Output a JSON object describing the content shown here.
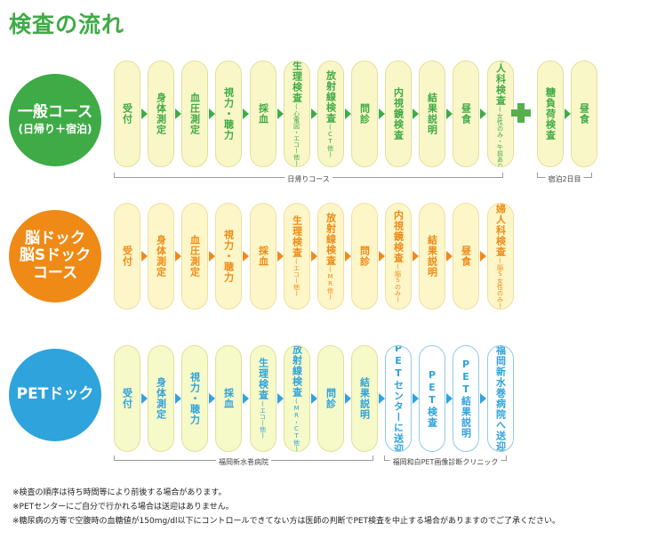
{
  "title": "検査の流れ",
  "colors": {
    "green": "#3fab46",
    "orange": "#ef8a16",
    "blue": "#2ea3dc",
    "green_fill": "#f9f7c7",
    "orange_fill": "#fdf6c8",
    "blue_fill": "#ffffff"
  },
  "courses": [
    {
      "name_main": "一般コース",
      "name_sub": "(日帰り＋宿泊)",
      "steps": [
        {
          "label": "受付",
          "note": ""
        },
        {
          "label": "身体測定",
          "note": ""
        },
        {
          "label": "血圧測定",
          "note": ""
        },
        {
          "label": "視力・聴力",
          "note": ""
        },
        {
          "label": "採血",
          "note": ""
        },
        {
          "label": "生理検査",
          "note": "(心電図・エコー他)"
        },
        {
          "label": "放射線検査",
          "note": "(CT他)"
        },
        {
          "label": "問診",
          "note": ""
        },
        {
          "label": "内視鏡検査",
          "note": ""
        },
        {
          "label": "結果説明",
          "note": ""
        },
        {
          "label": "昼食",
          "note": ""
        },
        {
          "label": "婦人科検査",
          "note": "(女性のみ・午前あり)"
        },
        {
          "label": "糖負荷検査",
          "note": ""
        },
        {
          "label": "昼食",
          "note": ""
        }
      ],
      "brackets": [
        "日帰りコース",
        "宿泊2日目"
      ]
    },
    {
      "name_main": "脳ドック",
      "name_main2": "脳Sドック",
      "name_main3": "コース",
      "steps": [
        {
          "label": "受付",
          "note": ""
        },
        {
          "label": "身体測定",
          "note": ""
        },
        {
          "label": "血圧測定",
          "note": ""
        },
        {
          "label": "視力・聴力",
          "note": ""
        },
        {
          "label": "採血",
          "note": ""
        },
        {
          "label": "生理検査",
          "note": "(エコー他)"
        },
        {
          "label": "放射線検査",
          "note": "(MR他)"
        },
        {
          "label": "問診",
          "note": ""
        },
        {
          "label": "内視鏡検査",
          "note": "(脳Sのみ)"
        },
        {
          "label": "結果説明",
          "note": ""
        },
        {
          "label": "昼食",
          "note": ""
        },
        {
          "label": "婦人科検査",
          "note": "(脳S女性のみ)"
        }
      ]
    },
    {
      "name_main": "PETドック",
      "steps": [
        {
          "label": "受付",
          "note": ""
        },
        {
          "label": "身体測定",
          "note": ""
        },
        {
          "label": "視力・聴力",
          "note": ""
        },
        {
          "label": "採血",
          "note": ""
        },
        {
          "label": "生理検査",
          "note": "(エコー他)"
        },
        {
          "label": "放射線検査",
          "note": "(MR・CT他)"
        },
        {
          "label": "問診",
          "note": ""
        },
        {
          "label": "結果説明",
          "note": ""
        },
        {
          "label": "PETセンターに送迎",
          "note": ""
        },
        {
          "label": "PET検査",
          "note": ""
        },
        {
          "label": "PET結果説明",
          "note": ""
        },
        {
          "label": "福岡新水巻病院へ送迎",
          "note": ""
        }
      ],
      "brackets": [
        "福岡新水巻病院",
        "福岡和白PET画像診断クリニック"
      ]
    }
  ],
  "notes": [
    "※検査の順序は待ち時間等により前後する場合があります。",
    "※PETセンターにご自分で行かれる場合は送迎はありません。",
    "※糖尿病の方等で空腹時の血糖値が150mg/dl以下にコントロールできてない方は医師の判断でPET検査を中止する場合がありますのでご了承ください。"
  ]
}
